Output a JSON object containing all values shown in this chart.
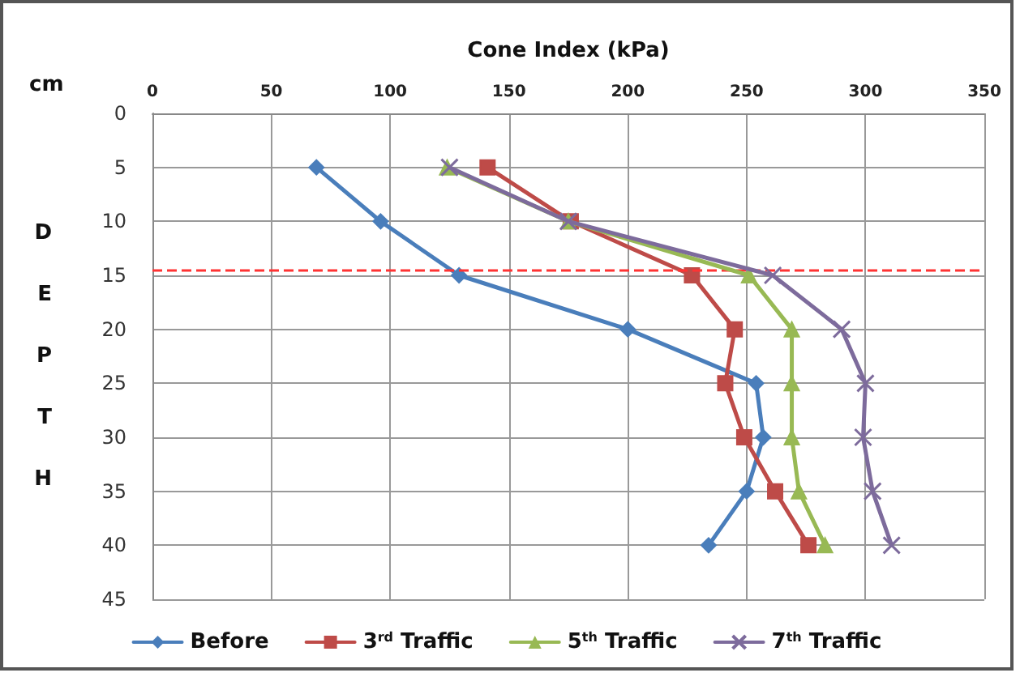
{
  "chart_data": {
    "type": "line",
    "xlabel": "Cone Index (kPa)",
    "ylabel": "DEPTH",
    "annotations": [
      "cm"
    ],
    "xlim": [
      0,
      350
    ],
    "xticks": [
      0,
      50,
      100,
      150,
      200,
      250,
      300,
      350
    ],
    "ylim": [
      45,
      0
    ],
    "yticks": [
      0,
      5,
      10,
      15,
      20,
      25,
      30,
      35,
      40,
      45
    ],
    "grid": true,
    "legend": "bottom",
    "line_style": "solid",
    "series": [
      {
        "name": "Before",
        "color": "#4a7ebb",
        "marker": "diamond",
        "x": [
          69,
          96,
          129,
          200,
          254,
          257,
          250,
          234
        ],
        "values": [
          5,
          10,
          15,
          20,
          25,
          30,
          35,
          40
        ]
      },
      {
        "name": "3$^{rd}$ Traffic",
        "color": "#be4b48",
        "marker": "square",
        "x": [
          141,
          176,
          227,
          245,
          241,
          249,
          262,
          276
        ],
        "values": [
          5,
          10,
          15,
          20,
          25,
          30,
          35,
          40
        ]
      },
      {
        "name": "5$^{th}$ Traffic",
        "color": "#98b954",
        "marker": "triangle",
        "x": [
          124,
          175,
          251,
          269,
          269,
          269,
          272,
          283
        ],
        "values": [
          5,
          10,
          15,
          20,
          25,
          30,
          35,
          40
        ]
      },
      {
        "name": "7$^{th}$ Traffic",
        "color": "#7d6b9c",
        "marker": "cross",
        "x": [
          125,
          175,
          261,
          290,
          300,
          299,
          303,
          311
        ],
        "values": [
          5,
          10,
          15,
          20,
          25,
          30,
          35,
          40
        ]
      }
    ],
    "ref_lines": [
      {
        "axis": "y",
        "value": 14.5,
        "color": "#ff3333",
        "line_style": "dashed"
      }
    ]
  }
}
